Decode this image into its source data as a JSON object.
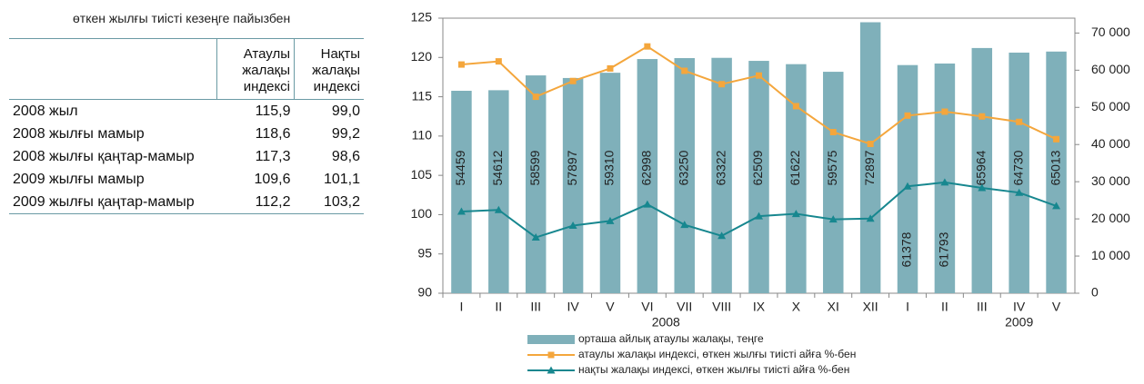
{
  "caption": "өткен жылғы тиісті кезеңге пайызбен",
  "table": {
    "header": [
      "Атаулы жалақы индексі",
      "Нақты жалақы индексі"
    ],
    "rows": [
      [
        "2008 жыл",
        "115,9",
        "99,0"
      ],
      [
        "2008 жылғы мамыр",
        "118,6",
        "99,2"
      ],
      [
        "2008 жылғы қаңтар-мамыр",
        "117,3",
        "98,6"
      ],
      [
        "2009 жылғы мамыр",
        "109,6",
        "101,1"
      ],
      [
        "2009 жылғы қаңтар-мамыр",
        "112,2",
        "103,2"
      ]
    ]
  },
  "chart_data": {
    "type": "bar-line",
    "categories": [
      "I",
      "II",
      "III",
      "IV",
      "V",
      "VI",
      "VII",
      "VIII",
      "IX",
      "X",
      "XI",
      "XII",
      "I",
      "II",
      "III",
      "IV",
      "V"
    ],
    "year_labels": [
      "2008",
      "2009"
    ],
    "ylim": [
      90,
      125
    ],
    "yticks": [
      90,
      95,
      100,
      105,
      110,
      115,
      120,
      125
    ],
    "y2lim": [
      0,
      74000
    ],
    "y2ticks": [
      0,
      {
        "value": 10000,
        "label": "10 000"
      },
      {
        "value": 20000,
        "label": "20 000"
      },
      {
        "value": 30000,
        "label": "30 000"
      },
      {
        "value": 40000,
        "label": "40 000"
      },
      {
        "value": 50000,
        "label": "50 000"
      },
      {
        "value": 60000,
        "label": "60 000"
      },
      {
        "value": 70000,
        "label": "70 000"
      }
    ],
    "series": [
      {
        "name": "орташа айлық атаулы жалақы, теңге",
        "type": "bar",
        "axis": "y2",
        "color": "#7fb0ba",
        "values": [
          54459,
          54612,
          58599,
          57897,
          59310,
          62998,
          63250,
          63322,
          62509,
          61622,
          59575,
          72897,
          61378,
          61793,
          65964,
          64730,
          65013
        ]
      },
      {
        "name": "атаулы жалақы индексі, өткен жылғы тиісті айға %-бен",
        "type": "line",
        "marker": "square",
        "color": "#f4a63c",
        "values": [
          119.1,
          119.5,
          115.0,
          117.0,
          118.6,
          121.4,
          118.3,
          116.6,
          117.7,
          113.8,
          110.5,
          109.0,
          112.6,
          113.1,
          112.5,
          111.8,
          109.6
        ]
      },
      {
        "name": "нақты жалақы индексі, өткен жылғы тиісті айға %-бен",
        "type": "line",
        "marker": "triangle",
        "color": "#17878f",
        "values": [
          100.4,
          100.6,
          97.1,
          98.6,
          99.2,
          101.3,
          98.7,
          97.3,
          99.8,
          100.1,
          99.4,
          99.5,
          103.6,
          104.1,
          103.4,
          102.8,
          101.1
        ]
      }
    ]
  }
}
